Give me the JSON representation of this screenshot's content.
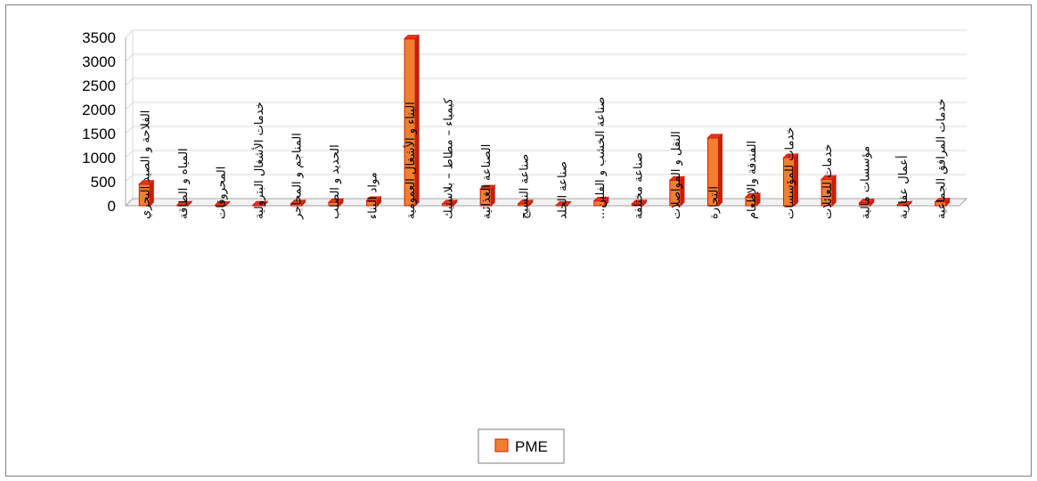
{
  "chart_data": {
    "type": "bar",
    "categories": [
      "الفلاحة و الصيد البحري",
      "المياه و الطاقة",
      "المحروقات",
      "خدمات الأشغال البترولية",
      "المناجم و المحاجر",
      "الحديد و الصلب",
      "مواد البناء",
      "البناء و الأشغال العمومية",
      "كيمياء – مطاط – بلاستيك",
      "الصناعة الغذائية",
      "صناعة النسيج",
      "صناعة الجلد",
      "صناعة الخشب و الفلين...",
      "صناعة مختلفة",
      "النقل و المواصلات",
      "التجارة",
      "الفندقة والإطعام",
      "خدمات للمؤسسات",
      "خدمات للعائلات",
      "مؤسسات مالية",
      "أعمال عقارية",
      "خدمات المرافق الجماعية"
    ],
    "series": [
      {
        "name": "PME",
        "values": [
          450,
          15,
          10,
          15,
          40,
          70,
          110,
          3470,
          40,
          350,
          40,
          10,
          100,
          40,
          530,
          1410,
          180,
          1000,
          550,
          60,
          15,
          80
        ]
      }
    ],
    "ylim": [
      0,
      3500
    ],
    "yticks": [
      0,
      500,
      1000,
      1500,
      2000,
      2500,
      3000,
      3500
    ],
    "grid": true,
    "legend_position": "bottom",
    "style": "3d-column",
    "colors": {
      "bar_front": "#f08030",
      "bar_side": "#c81e0a",
      "bar_top": "#e23a18",
      "bar_outline": "#d01a0a",
      "grid": "#d9d9d9",
      "axis": "#a6a6a6"
    }
  }
}
